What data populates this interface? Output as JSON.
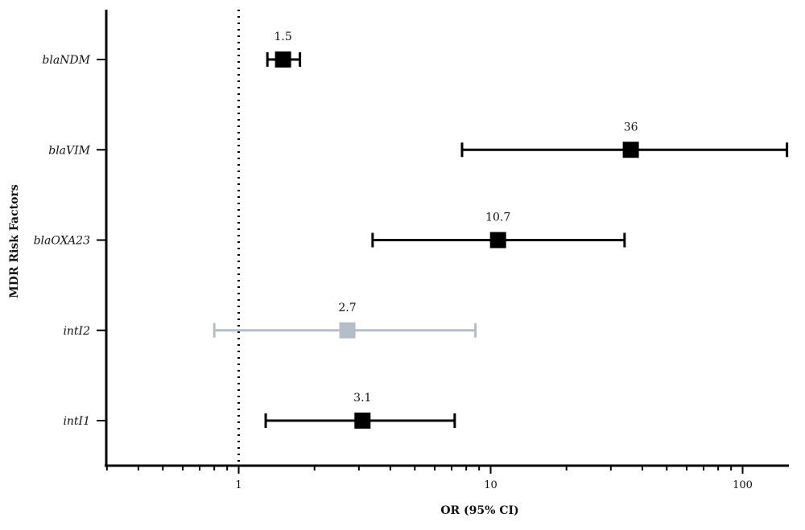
{
  "chart_data": {
    "type": "forest",
    "xlabel": "OR (95% CI)",
    "ylabel": "MDR Risk Factors",
    "x_scale": "log",
    "xlim": [
      0.3,
      150
    ],
    "x_ticks": [
      1,
      10,
      100
    ],
    "reference_line": 1,
    "grid": false,
    "series": [
      {
        "label": "blaNDM",
        "or": 1.5,
        "ci_low": 1.3,
        "ci_high": 1.75,
        "value_label": "1.5",
        "color": "#000000"
      },
      {
        "label": "blaVIM",
        "or": 36,
        "ci_low": 7.7,
        "ci_high": 150,
        "value_label": "36",
        "color": "#000000"
      },
      {
        "label": "blaOXA23",
        "or": 10.7,
        "ci_low": 3.4,
        "ci_high": 34,
        "value_label": "10.7",
        "color": "#000000"
      },
      {
        "label": "intI2",
        "or": 2.7,
        "ci_low": 0.8,
        "ci_high": 8.7,
        "value_label": "2.7",
        "color": "#b4bec8"
      },
      {
        "label": "intI1",
        "or": 3.1,
        "ci_low": 1.28,
        "ci_high": 7.2,
        "value_label": "3.1",
        "color": "#000000"
      }
    ]
  }
}
